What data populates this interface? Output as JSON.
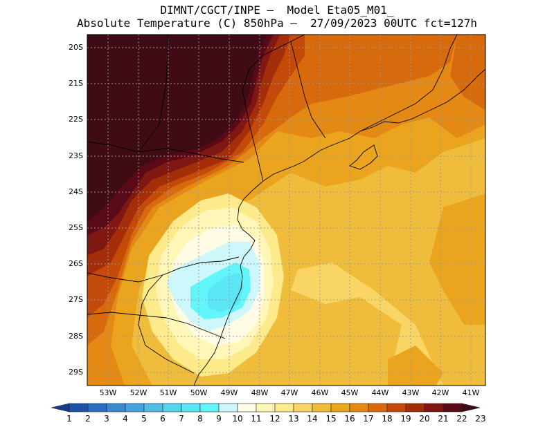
{
  "title_line_1": "DIMNT/CGCT/INPE –  Model Eta05_M01_",
  "title_line_2": "Absolute Temperature (C) 850hPa –  27/09/2023 00UTC fct=127h",
  "map": {
    "lat_labels": [
      "20S",
      "21S",
      "22S",
      "23S",
      "24S",
      "25S",
      "26S",
      "27S",
      "28S",
      "29S"
    ],
    "lon_labels": [
      "53W",
      "52W",
      "51W",
      "50W",
      "49W",
      "48W",
      "47W",
      "46W",
      "45W",
      "44W",
      "43W",
      "42W",
      "41W"
    ]
  },
  "colorbar": {
    "labels": [
      "1",
      "2",
      "3",
      "4",
      "5",
      "6",
      "7",
      "8",
      "9",
      "10",
      "11",
      "12",
      "13",
      "14",
      "15",
      "16",
      "17",
      "18",
      "19",
      "20",
      "21",
      "22",
      "23"
    ],
    "colors": [
      "#1a3a8c",
      "#1f53a8",
      "#2a6fbf",
      "#3a8ad0",
      "#47a3dd",
      "#52bde6",
      "#55d4ee",
      "#5ae6f4",
      "#62f6fb",
      "#cdf7fb",
      "#fffbe4",
      "#fff6b8",
      "#fdea8a",
      "#f8d565",
      "#f0bc3b",
      "#eba41e",
      "#e48914",
      "#d86a0e",
      "#c44a09",
      "#a42d0a",
      "#7f1712",
      "#5a0a16",
      "#3f0b14"
    ]
  },
  "field_colors": {
    "t10": "#cdf7fb",
    "t11": "#fffbe4",
    "t12": "#fff6b8",
    "t13": "#fdea8a",
    "t14": "#f8d565",
    "t15": "#f0bc3b",
    "t16": "#eba41e",
    "t17": "#e48914",
    "t18": "#d86a0e",
    "t19": "#c44a09",
    "t20": "#a42d0a",
    "t21": "#7f1712",
    "t22": "#5a0a16",
    "t23": "#3f0b14",
    "t8": "#5ae6f4",
    "t9": "#62f6fb"
  }
}
